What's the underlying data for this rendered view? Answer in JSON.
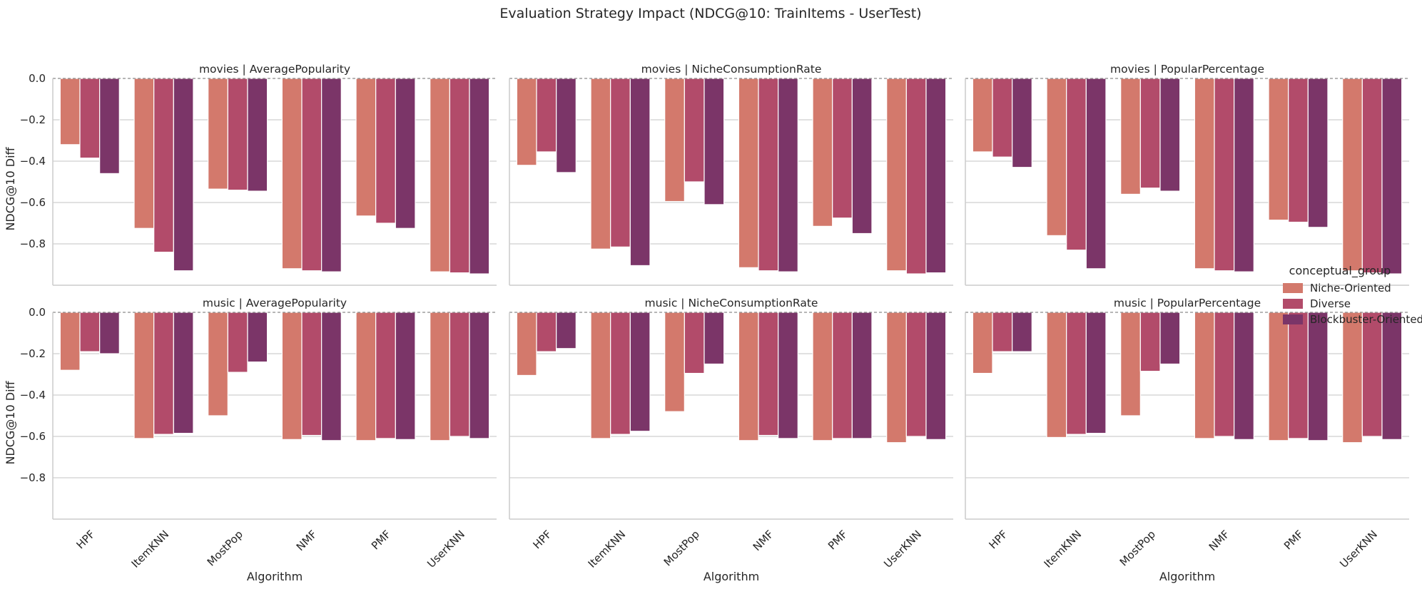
{
  "chart_data": {
    "type": "bar",
    "title": "Evaluation Strategy Impact (NDCG@10: TrainItems - UserTest)",
    "xlabel": "Algorithm",
    "ylabel": "NDCG@10 Diff",
    "categories": [
      "HPF",
      "ItemKNN",
      "MostPop",
      "NMF",
      "PMF",
      "UserKNN"
    ],
    "ylim": [
      -1.0,
      0.0
    ],
    "yticks": [
      0.0,
      -0.2,
      -0.4,
      -0.6,
      -0.8
    ],
    "ytick_labels": [
      "0.0",
      "−0.2",
      "−0.4",
      "−0.6",
      "−0.8"
    ],
    "grid": "horizontal",
    "legend": {
      "title": "conceptual_group",
      "placement": "center-right",
      "entries": [
        "Niche-Oriented",
        "Diverse",
        "Blockbuster-Oriented"
      ]
    },
    "colors": [
      "#d3796c",
      "#b24b6a",
      "#7b3568"
    ],
    "panels": [
      {
        "title": "movies | AveragePopularity",
        "series": [
          {
            "name": "Niche-Oriented",
            "values": [
              -0.32,
              -0.725,
              -0.535,
              -0.92,
              -0.665,
              -0.935
            ]
          },
          {
            "name": "Diverse",
            "values": [
              -0.385,
              -0.84,
              -0.54,
              -0.93,
              -0.7,
              -0.94
            ]
          },
          {
            "name": "Blockbuster-Oriented",
            "values": [
              -0.46,
              -0.93,
              -0.545,
              -0.935,
              -0.725,
              -0.945
            ]
          }
        ]
      },
      {
        "title": "movies | NicheConsumptionRate",
        "series": [
          {
            "name": "Niche-Oriented",
            "values": [
              -0.42,
              -0.825,
              -0.595,
              -0.915,
              -0.715,
              -0.93
            ]
          },
          {
            "name": "Diverse",
            "values": [
              -0.355,
              -0.815,
              -0.5,
              -0.93,
              -0.675,
              -0.945
            ]
          },
          {
            "name": "Blockbuster-Oriented",
            "values": [
              -0.455,
              -0.905,
              -0.61,
              -0.935,
              -0.75,
              -0.94
            ]
          }
        ]
      },
      {
        "title": "movies | PopularPercentage",
        "series": [
          {
            "name": "Niche-Oriented",
            "values": [
              -0.355,
              -0.76,
              -0.56,
              -0.92,
              -0.685,
              -0.93
            ]
          },
          {
            "name": "Diverse",
            "values": [
              -0.38,
              -0.83,
              -0.53,
              -0.93,
              -0.695,
              -0.94
            ]
          },
          {
            "name": "Blockbuster-Oriented",
            "values": [
              -0.43,
              -0.92,
              -0.545,
              -0.935,
              -0.72,
              -0.945
            ]
          }
        ]
      },
      {
        "title": "music | AveragePopularity",
        "series": [
          {
            "name": "Niche-Oriented",
            "values": [
              -0.28,
              -0.61,
              -0.5,
              -0.615,
              -0.62,
              -0.62
            ]
          },
          {
            "name": "Diverse",
            "values": [
              -0.19,
              -0.59,
              -0.29,
              -0.595,
              -0.61,
              -0.6
            ]
          },
          {
            "name": "Blockbuster-Oriented",
            "values": [
              -0.2,
              -0.585,
              -0.24,
              -0.62,
              -0.615,
              -0.61
            ]
          }
        ]
      },
      {
        "title": "music | NicheConsumptionRate",
        "series": [
          {
            "name": "Niche-Oriented",
            "values": [
              -0.305,
              -0.61,
              -0.48,
              -0.62,
              -0.62,
              -0.63
            ]
          },
          {
            "name": "Diverse",
            "values": [
              -0.19,
              -0.59,
              -0.295,
              -0.595,
              -0.61,
              -0.6
            ]
          },
          {
            "name": "Blockbuster-Oriented",
            "values": [
              -0.175,
              -0.575,
              -0.25,
              -0.61,
              -0.61,
              -0.615
            ]
          }
        ]
      },
      {
        "title": "music | PopularPercentage",
        "series": [
          {
            "name": "Niche-Oriented",
            "values": [
              -0.295,
              -0.605,
              -0.5,
              -0.61,
              -0.62,
              -0.63
            ]
          },
          {
            "name": "Diverse",
            "values": [
              -0.19,
              -0.59,
              -0.285,
              -0.6,
              -0.61,
              -0.6
            ]
          },
          {
            "name": "Blockbuster-Oriented",
            "values": [
              -0.19,
              -0.585,
              -0.25,
              -0.615,
              -0.62,
              -0.615
            ]
          }
        ]
      }
    ]
  }
}
